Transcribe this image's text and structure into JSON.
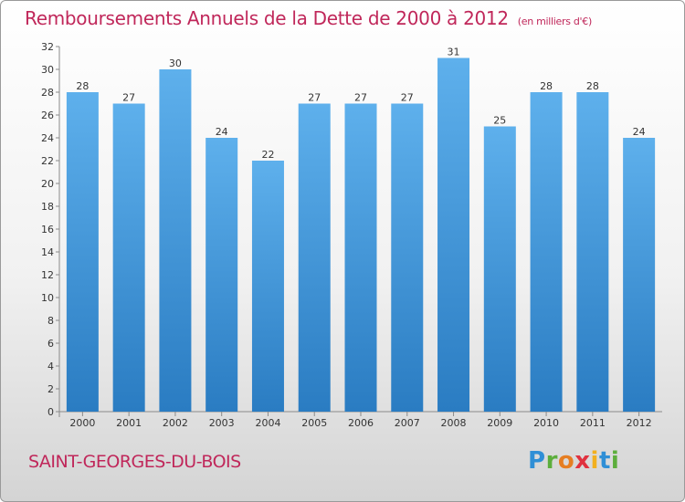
{
  "header": {
    "title": "Remboursements Annuels de la Dette de 2000 à 2012",
    "subtitle": "(en milliers d'€)"
  },
  "footer": {
    "place": "SAINT-GEORGES-DU-BOIS",
    "logo_letters": [
      "P",
      "r",
      "o",
      "x",
      "i",
      "t",
      "i"
    ]
  },
  "colors": {
    "title": "#c0275a",
    "bar_top": "#5eb0ec",
    "bar_bottom": "#2a7cc2"
  },
  "chart_data": {
    "type": "bar",
    "categories": [
      "2000",
      "2001",
      "2002",
      "2003",
      "2004",
      "2005",
      "2006",
      "2007",
      "2008",
      "2009",
      "2010",
      "2011",
      "2012"
    ],
    "values": [
      28,
      27,
      30,
      24,
      22,
      27,
      27,
      27,
      31,
      25,
      28,
      28,
      24
    ],
    "ylim": [
      0,
      32
    ],
    "yticks": [
      0,
      2,
      4,
      6,
      8,
      10,
      12,
      14,
      16,
      18,
      20,
      22,
      24,
      26,
      28,
      30,
      32
    ],
    "grid": false,
    "data_labels": true
  }
}
